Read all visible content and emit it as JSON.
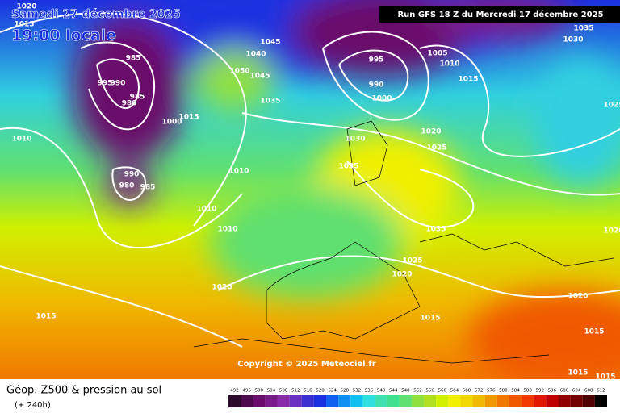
{
  "header": {
    "date": "Samedi 27 décembre 2025",
    "time": "19:00 locale",
    "run": "Run GFS 18 Z du Mercredi 17 décembre 2025"
  },
  "copyright": "Copyright © 2025 Meteociel.fr",
  "footer": {
    "title": "Géop. Z500 & pression au sol",
    "lead": "(+ 240h)"
  },
  "isobar_labels": [
    1020,
    1015,
    1010,
    985,
    995,
    990,
    985,
    980,
    1000,
    1015,
    990,
    980,
    985,
    1010,
    1010,
    1010,
    1020,
    1015,
    1045,
    1040,
    1050,
    1045,
    1035,
    995,
    990,
    1000,
    1005,
    1010,
    1015,
    1020,
    1025,
    1030,
    1035,
    1035,
    1025,
    1020,
    1015,
    1020,
    1015,
    1015,
    1015,
    1035,
    1030,
    1025,
    1020
  ],
  "colorbar": {
    "values": [
      492,
      496,
      500,
      504,
      508,
      512,
      516,
      520,
      524,
      528,
      532,
      536,
      540,
      544,
      548,
      552,
      556,
      560,
      564,
      568,
      572,
      576,
      580,
      584,
      588,
      592,
      596,
      600,
      604,
      608,
      612
    ],
    "colors": [
      "#2b0a2b",
      "#4b0a4b",
      "#6a0a6a",
      "#7a1a8a",
      "#8a2aa8",
      "#6a30c0",
      "#3a30d0",
      "#1a30e0",
      "#1060f0",
      "#1090f0",
      "#10c0f0",
      "#30e0e0",
      "#40e0b0",
      "#40e090",
      "#60e070",
      "#90e040",
      "#b0e020",
      "#d0f000",
      "#f0f000",
      "#f0d800",
      "#f0b800",
      "#f09800",
      "#f07800",
      "#f05800",
      "#f03800",
      "#e01800",
      "#c00000",
      "#900000",
      "#700000",
      "#500000",
      "#000000"
    ]
  }
}
